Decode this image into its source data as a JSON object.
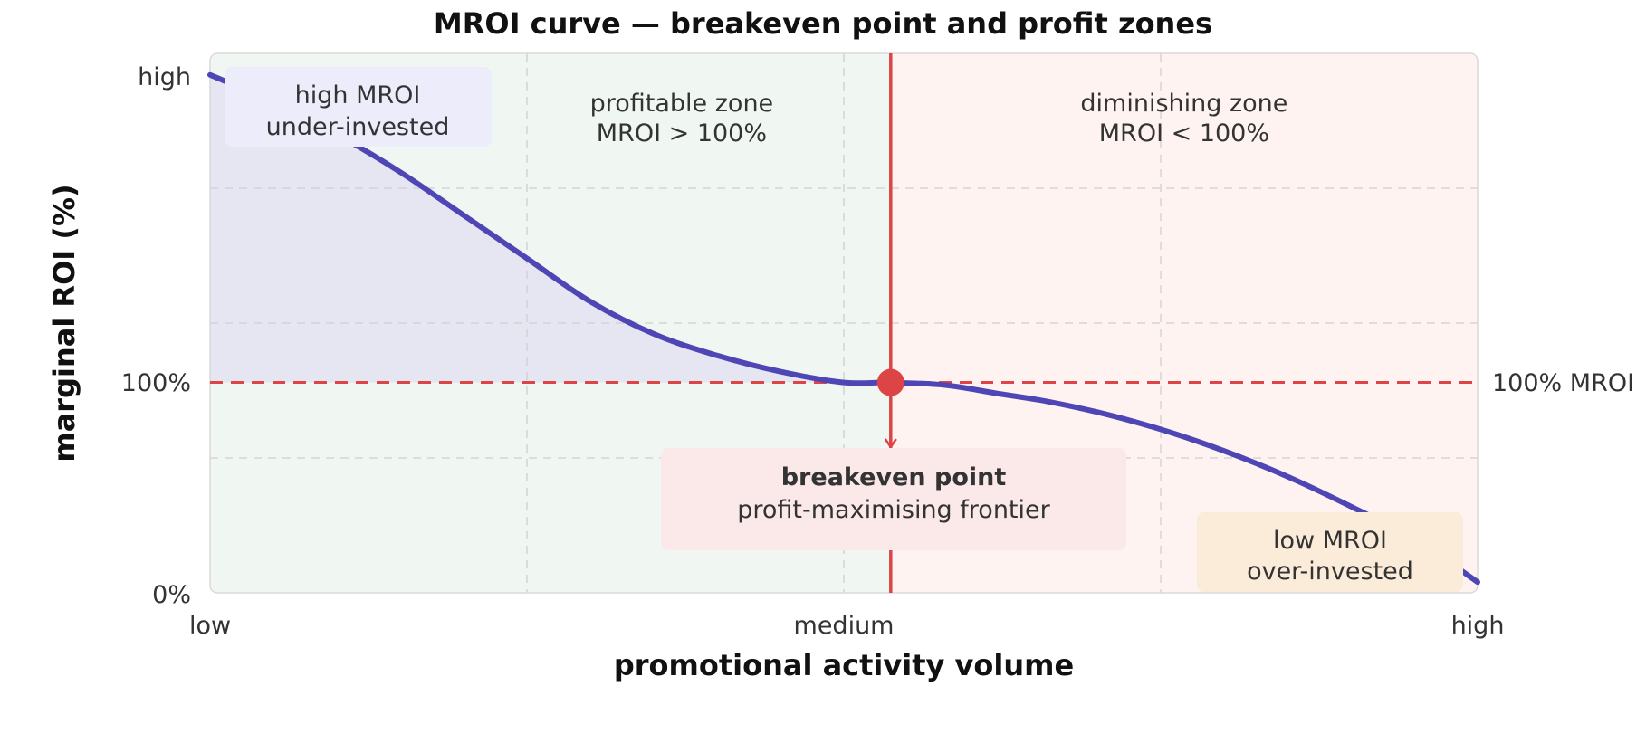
{
  "chart_data": {
    "type": "line",
    "title": "MROI curve — breakeven point and profit zones",
    "xlabel": "promotional activity volume",
    "ylabel": "marginal ROI (%)",
    "x_ticks": [
      "low",
      "medium",
      "high"
    ],
    "y_ticks": [
      "0%",
      "100%",
      "high"
    ],
    "xlim": [
      0,
      1
    ],
    "ylim": [
      0,
      1
    ],
    "grid": true,
    "series": [
      {
        "color": "#4f46b5",
        "x": [
          0.0,
          0.05,
          0.1,
          0.15,
          0.2,
          0.25,
          0.3,
          0.35,
          0.4,
          0.45,
          0.5,
          0.537,
          0.58,
          0.62,
          0.66,
          0.7,
          0.74,
          0.78,
          0.82,
          0.86,
          0.9,
          0.95,
          1.0
        ],
        "y": [
          0.96,
          0.91,
          0.85,
          0.78,
          0.7,
          0.62,
          0.54,
          0.48,
          0.44,
          0.41,
          0.39,
          0.39,
          0.385,
          0.37,
          0.355,
          0.335,
          0.31,
          0.28,
          0.245,
          0.205,
          0.16,
          0.1,
          0.02
        ]
      }
    ],
    "reference_line": {
      "y": 0.39,
      "label": "100% MROI",
      "color": "#dc4446"
    },
    "breakeven": {
      "x": 0.537,
      "y": 0.39,
      "label": "breakeven point",
      "sublabel": "profit-maximising frontier",
      "color": "#dc4446"
    },
    "zones": [
      {
        "label": "profitable zone",
        "sublabel": "MROI > 100%",
        "x_range": [
          0,
          0.537
        ],
        "color": "#f0f6f2"
      },
      {
        "label": "diminishing zone",
        "sublabel": "MROI < 100%",
        "x_range": [
          0.537,
          1
        ],
        "color": "#fff3f2"
      }
    ],
    "annotations": [
      {
        "lines": [
          "high MROI",
          "under-invested"
        ],
        "color": "#ececfa"
      },
      {
        "lines": [
          "low MROI",
          "over-invested"
        ],
        "color": "#fbebd9"
      }
    ]
  }
}
